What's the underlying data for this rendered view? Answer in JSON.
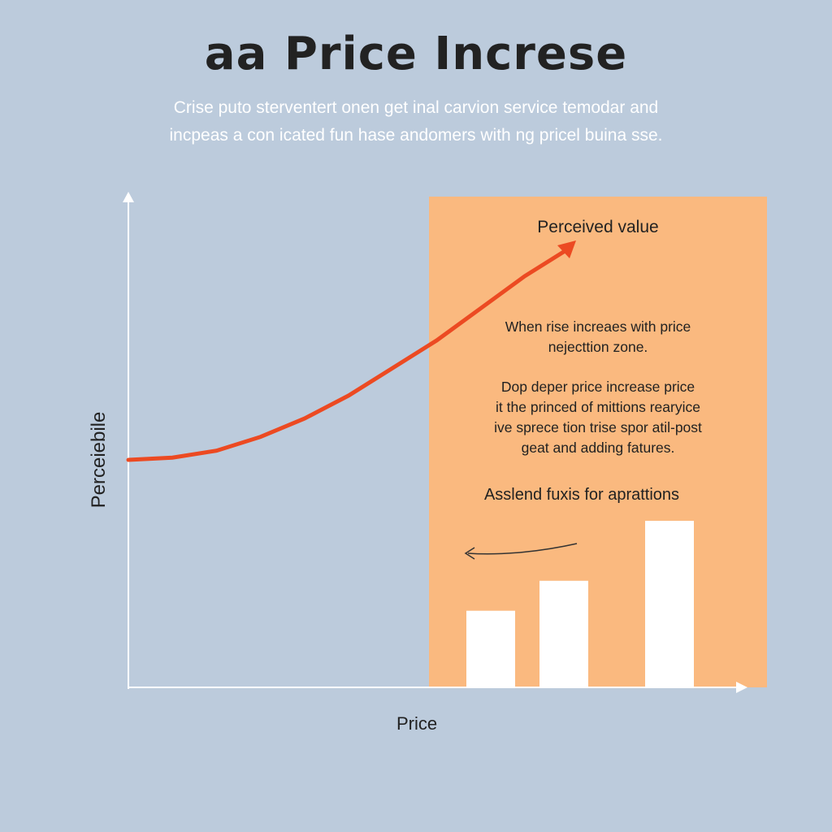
{
  "header": {
    "title": "aa Price Increse",
    "subtitle_lines": [
      "Crise puto sterventert onen get inal carvion service temodar and",
      "incpeas a con icated fun hase andomers with ng pricel buina sse."
    ]
  },
  "zone": {
    "title": "Perceived value",
    "paragraph1": [
      "When rise increaes with price",
      "nejecttion zone."
    ],
    "paragraph2": [
      "Dop deper price increase price",
      "it the princed of mittions rearyice",
      "ive sprece tion trise spor atil-post",
      "geat and adding fatures."
    ],
    "subheading": "Asslend fuxis for aprattions"
  },
  "colors": {
    "background": "#bccbdc",
    "zone": "#fab97f",
    "curve": "#ec4a22",
    "bars": "#ffffff",
    "axes": "#ffffff"
  },
  "chart_data": {
    "type": "line",
    "xlabel": "Price",
    "ylabel": "Perceiebile",
    "series": [
      {
        "x": [
          0,
          0.1,
          0.2,
          0.3,
          0.4,
          0.5,
          0.6,
          0.7,
          0.8,
          0.9,
          1.0
        ],
        "y": [
          0.4,
          0.405,
          0.42,
          0.45,
          0.49,
          0.54,
          0.6,
          0.66,
          0.73,
          0.8,
          0.86
        ]
      }
    ],
    "bars": {
      "values": [
        0.46,
        0.64,
        1.0
      ]
    }
  }
}
